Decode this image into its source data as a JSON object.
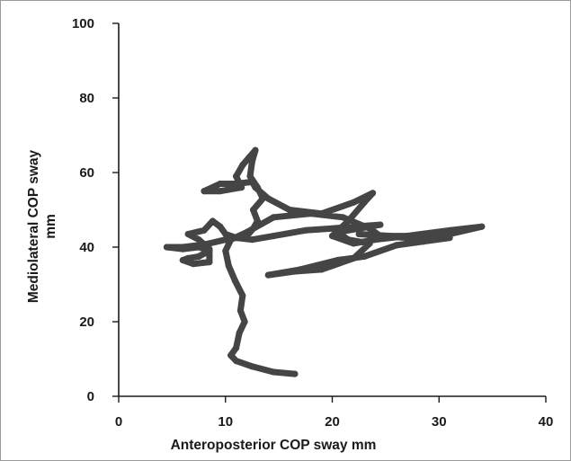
{
  "chart_data": {
    "type": "line",
    "title": "",
    "xlabel": "Anteroposterior COP sway mm",
    "ylabel_lines": [
      "Mediolateral COP sway",
      "mm"
    ],
    "xlim": [
      0,
      40
    ],
    "ylim": [
      0,
      100
    ],
    "xticks": [
      "0",
      "10",
      "20",
      "30",
      "40"
    ],
    "yticks": [
      "0",
      "20",
      "40",
      "60",
      "80",
      "100"
    ],
    "grid": false,
    "line_color": "#454545",
    "series": [
      {
        "points": [
          [
            16.5,
            6
          ],
          [
            14.5,
            6.5
          ],
          [
            12.5,
            8
          ],
          [
            11,
            9.5
          ],
          [
            10.5,
            11
          ],
          [
            11,
            13
          ],
          [
            11.3,
            17
          ],
          [
            11.8,
            20
          ],
          [
            11.4,
            23
          ],
          [
            11.6,
            27
          ],
          [
            10.9,
            31
          ],
          [
            10.3,
            35
          ],
          [
            10,
            39
          ],
          [
            10.5,
            42
          ],
          [
            12,
            44
          ],
          [
            14.5,
            48
          ],
          [
            18,
            49
          ],
          [
            21,
            48
          ],
          [
            23.5,
            45
          ],
          [
            24.5,
            43
          ],
          [
            27,
            42.5
          ],
          [
            31,
            43.5
          ],
          [
            34,
            45.5
          ],
          [
            31,
            44.5
          ],
          [
            27,
            43
          ],
          [
            24,
            42
          ],
          [
            22,
            41
          ],
          [
            20,
            43
          ],
          [
            21.5,
            47
          ],
          [
            23,
            52
          ],
          [
            23.8,
            54.5
          ],
          [
            22,
            52
          ],
          [
            19,
            49
          ],
          [
            16,
            50
          ],
          [
            14,
            53
          ],
          [
            12.8,
            56
          ],
          [
            12.5,
            57.5
          ],
          [
            11,
            57
          ],
          [
            9.5,
            57
          ],
          [
            8,
            55
          ],
          [
            9.5,
            55
          ],
          [
            11.5,
            56
          ],
          [
            11,
            59
          ],
          [
            11.6,
            62
          ],
          [
            12.2,
            64
          ],
          [
            12.8,
            66
          ],
          [
            12.5,
            63
          ],
          [
            12.3,
            59
          ],
          [
            13,
            56
          ],
          [
            13.5,
            53
          ],
          [
            12.6,
            50
          ],
          [
            13,
            47
          ],
          [
            12.6,
            45
          ],
          [
            12,
            43
          ],
          [
            10,
            42
          ],
          [
            8.5,
            41
          ],
          [
            7.5,
            40.5
          ],
          [
            6,
            40
          ],
          [
            4.5,
            40
          ],
          [
            6,
            39.5
          ],
          [
            7.5,
            40
          ],
          [
            8.5,
            39
          ],
          [
            7.5,
            37.5
          ],
          [
            6.5,
            37
          ],
          [
            6,
            36.5
          ],
          [
            7,
            35.5
          ],
          [
            8.5,
            36
          ],
          [
            8.5,
            37.5
          ],
          [
            8.5,
            39.5
          ],
          [
            7.5,
            42
          ],
          [
            6.5,
            43.5
          ],
          [
            8,
            44.5
          ],
          [
            8.8,
            47
          ],
          [
            9.5,
            45.5
          ],
          [
            10,
            43.5
          ],
          [
            11,
            42.5
          ],
          [
            12.5,
            42
          ],
          [
            14.5,
            43
          ],
          [
            17.5,
            44.5
          ],
          [
            20,
            45
          ],
          [
            22,
            45.5
          ],
          [
            24.5,
            46
          ],
          [
            22.5,
            45
          ],
          [
            20.5,
            44
          ],
          [
            21.5,
            42
          ],
          [
            23.5,
            41
          ],
          [
            22,
            37
          ],
          [
            19,
            34
          ],
          [
            16.5,
            33.5
          ],
          [
            14,
            32.5
          ],
          [
            17,
            34
          ],
          [
            20.5,
            36.5
          ],
          [
            23,
            37.5
          ],
          [
            26,
            40.5
          ],
          [
            28.5,
            41.5
          ],
          [
            31,
            42.5
          ],
          [
            29,
            43
          ],
          [
            25.5,
            43
          ],
          [
            22.5,
            43.5
          ]
        ]
      }
    ]
  }
}
